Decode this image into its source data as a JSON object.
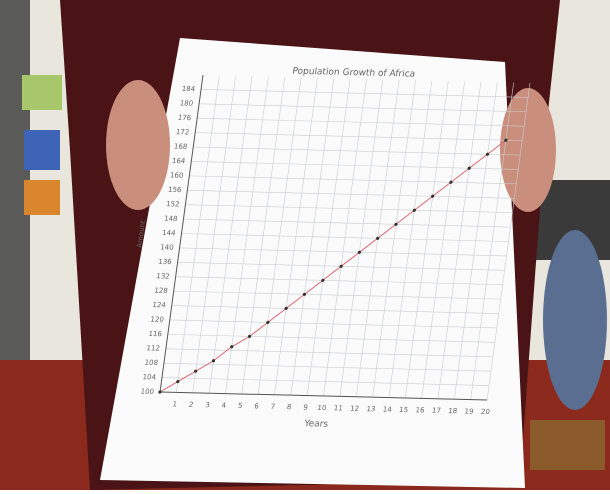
{
  "chart_data": {
    "type": "line",
    "title": "Population Growth of Africa",
    "x_label": "Years",
    "y_label": "Amount",
    "x": [
      0,
      1,
      2,
      3,
      4,
      5,
      6,
      7,
      8,
      9,
      10,
      11,
      12,
      13,
      14,
      15,
      16,
      17,
      18,
      19
    ],
    "values": [
      100,
      103,
      106,
      109,
      113,
      116,
      120,
      124,
      128,
      132,
      136,
      140,
      144,
      148,
      152,
      156,
      160,
      164,
      168,
      172
    ],
    "color": "#e0606e",
    "xlim": [
      0,
      20
    ],
    "xticks": [
      1,
      2,
      3,
      4,
      5,
      6,
      7,
      8,
      9,
      10,
      11,
      12,
      13,
      14,
      15,
      16,
      17,
      18,
      19,
      20
    ],
    "ylim": [
      100,
      188
    ],
    "yticks": [
      100,
      104,
      108,
      112,
      116,
      120,
      124,
      128,
      132,
      136,
      140,
      144,
      148,
      152,
      156,
      160,
      164,
      168,
      172,
      176,
      180,
      184
    ],
    "grid": true
  }
}
